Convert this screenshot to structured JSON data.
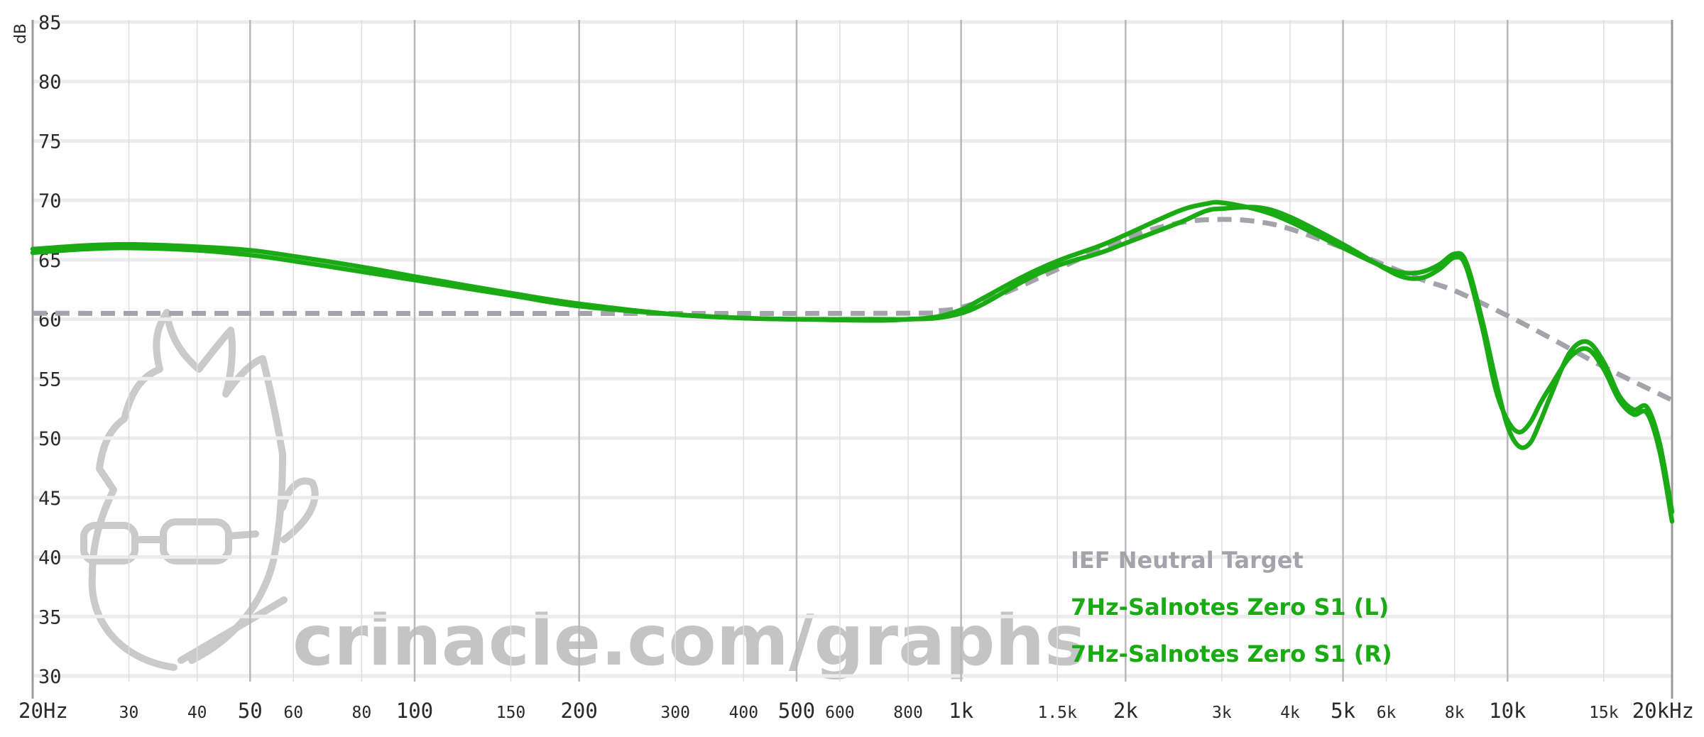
{
  "chart_data": {
    "type": "line",
    "ylabel": "dB",
    "ylim": [
      30,
      85
    ],
    "y_ticks": [
      30,
      35,
      40,
      45,
      50,
      55,
      60,
      65,
      70,
      75,
      80,
      85
    ],
    "x_scale": "log",
    "xlim": [
      20,
      20000
    ],
    "x_ticks": [
      {
        "value": 20,
        "label": "20Hz",
        "major": true
      },
      {
        "value": 30,
        "label": "30",
        "major": false
      },
      {
        "value": 40,
        "label": "40",
        "major": false
      },
      {
        "value": 50,
        "label": "50",
        "major": true
      },
      {
        "value": 60,
        "label": "60",
        "major": false
      },
      {
        "value": 80,
        "label": "80",
        "major": false
      },
      {
        "value": 100,
        "label": "100",
        "major": true
      },
      {
        "value": 150,
        "label": "150",
        "major": false
      },
      {
        "value": 200,
        "label": "200",
        "major": true
      },
      {
        "value": 300,
        "label": "300",
        "major": false
      },
      {
        "value": 400,
        "label": "400",
        "major": false
      },
      {
        "value": 500,
        "label": "500",
        "major": true
      },
      {
        "value": 600,
        "label": "600",
        "major": false
      },
      {
        "value": 800,
        "label": "800",
        "major": false
      },
      {
        "value": 1000,
        "label": "1k",
        "major": true
      },
      {
        "value": 1500,
        "label": "1.5k",
        "major": false
      },
      {
        "value": 2000,
        "label": "2k",
        "major": true
      },
      {
        "value": 3000,
        "label": "3k",
        "major": false
      },
      {
        "value": 4000,
        "label": "4k",
        "major": false
      },
      {
        "value": 5000,
        "label": "5k",
        "major": true
      },
      {
        "value": 6000,
        "label": "6k",
        "major": false
      },
      {
        "value": 8000,
        "label": "8k",
        "major": false
      },
      {
        "value": 10000,
        "label": "10k",
        "major": true
      },
      {
        "value": 15000,
        "label": "15k",
        "major": false
      },
      {
        "value": 20000,
        "label": "20kHz",
        "major": true
      }
    ],
    "legend_position": "bottom-right",
    "series": [
      {
        "name": "IEF Neutral Target",
        "color": "#a3a3ab",
        "dashed": true,
        "points": [
          [
            20,
            60.5
          ],
          [
            700,
            60.5
          ],
          [
            900,
            60.7
          ],
          [
            1000,
            61.0
          ],
          [
            1200,
            62.2
          ],
          [
            1500,
            64.2
          ],
          [
            2000,
            66.8
          ],
          [
            2500,
            68.1
          ],
          [
            3000,
            68.4
          ],
          [
            3500,
            68.2
          ],
          [
            4000,
            67.6
          ],
          [
            5000,
            66.0
          ],
          [
            6000,
            64.5
          ],
          [
            7000,
            63.3
          ],
          [
            8000,
            62.4
          ],
          [
            10000,
            60.3
          ],
          [
            12000,
            58.4
          ],
          [
            15000,
            56.0
          ],
          [
            20000,
            53.2
          ]
        ]
      },
      {
        "name": "7Hz-Salnotes Zero S1 (L)",
        "color": "#1aaa14",
        "dashed": false,
        "points": [
          [
            20,
            65.9
          ],
          [
            25,
            66.2
          ],
          [
            30,
            66.3
          ],
          [
            40,
            66.1
          ],
          [
            50,
            65.8
          ],
          [
            60,
            65.3
          ],
          [
            80,
            64.4
          ],
          [
            100,
            63.6
          ],
          [
            150,
            62.2
          ],
          [
            200,
            61.3
          ],
          [
            300,
            60.4
          ],
          [
            400,
            60.1
          ],
          [
            500,
            60.0
          ],
          [
            700,
            59.9
          ],
          [
            800,
            60.0
          ],
          [
            900,
            60.1
          ],
          [
            1000,
            60.5
          ],
          [
            1100,
            61.3
          ],
          [
            1300,
            63.2
          ],
          [
            1500,
            64.5
          ],
          [
            1800,
            65.6
          ],
          [
            2000,
            66.4
          ],
          [
            2500,
            68.1
          ],
          [
            2800,
            69.1
          ],
          [
            3000,
            69.3
          ],
          [
            3500,
            69.4
          ],
          [
            4000,
            68.6
          ],
          [
            5000,
            66.3
          ],
          [
            6000,
            64.2
          ],
          [
            6500,
            63.5
          ],
          [
            7000,
            63.5
          ],
          [
            7500,
            64.2
          ],
          [
            8000,
            65.2
          ],
          [
            8400,
            64.4
          ],
          [
            9000,
            59.2
          ],
          [
            9500,
            54.2
          ],
          [
            10000,
            51.5
          ],
          [
            10500,
            50.5
          ],
          [
            11000,
            51.3
          ],
          [
            11500,
            53.0
          ],
          [
            12000,
            54.4
          ],
          [
            13000,
            56.8
          ],
          [
            14000,
            57.5
          ],
          [
            15000,
            55.8
          ],
          [
            16000,
            53.2
          ],
          [
            17000,
            52.0
          ],
          [
            18000,
            52.1
          ],
          [
            19000,
            48.8
          ],
          [
            20000,
            43.0
          ]
        ]
      },
      {
        "name": "7Hz-Salnotes Zero S1 (R)",
        "color": "#1aaa14",
        "dashed": false,
        "points": [
          [
            20,
            65.6
          ],
          [
            25,
            65.9
          ],
          [
            30,
            66.0
          ],
          [
            40,
            65.8
          ],
          [
            50,
            65.4
          ],
          [
            60,
            64.9
          ],
          [
            80,
            64.0
          ],
          [
            100,
            63.3
          ],
          [
            150,
            62.0
          ],
          [
            200,
            61.1
          ],
          [
            300,
            60.4
          ],
          [
            400,
            60.1
          ],
          [
            500,
            60.0
          ],
          [
            700,
            60.0
          ],
          [
            800,
            60.0
          ],
          [
            900,
            60.2
          ],
          [
            1000,
            60.8
          ],
          [
            1100,
            61.8
          ],
          [
            1300,
            63.6
          ],
          [
            1500,
            64.9
          ],
          [
            1800,
            66.2
          ],
          [
            2000,
            67.1
          ],
          [
            2500,
            69.1
          ],
          [
            2800,
            69.7
          ],
          [
            3000,
            69.8
          ],
          [
            3500,
            69.2
          ],
          [
            4000,
            68.2
          ],
          [
            5000,
            66.0
          ],
          [
            6000,
            64.3
          ],
          [
            6500,
            63.9
          ],
          [
            7000,
            64.0
          ],
          [
            7500,
            64.6
          ],
          [
            8000,
            65.5
          ],
          [
            8400,
            64.8
          ],
          [
            9000,
            59.8
          ],
          [
            9500,
            55.0
          ],
          [
            10000,
            51.0
          ],
          [
            10500,
            49.3
          ],
          [
            11000,
            49.6
          ],
          [
            11500,
            51.5
          ],
          [
            12000,
            53.6
          ],
          [
            13000,
            57.2
          ],
          [
            14000,
            58.1
          ],
          [
            15000,
            56.4
          ],
          [
            16000,
            53.6
          ],
          [
            17000,
            52.4
          ],
          [
            18000,
            52.6
          ],
          [
            19000,
            49.5
          ],
          [
            20000,
            43.8
          ]
        ]
      }
    ]
  },
  "watermark": {
    "text": "crinacle.com/graphs",
    "logo": "crinacle-glasses-face-logo"
  }
}
